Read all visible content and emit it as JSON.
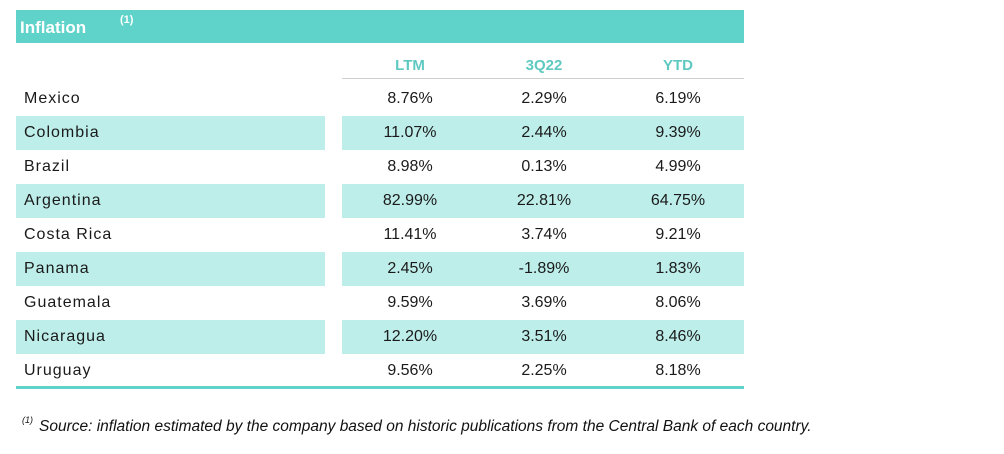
{
  "title": {
    "text": "Inflation",
    "footnote_marker": "(1)"
  },
  "columns": [
    "LTM",
    "3Q22",
    "YTD"
  ],
  "rows": [
    {
      "country": "Mexico",
      "ltm": "8.76%",
      "q": "2.29%",
      "ytd": "6.19%",
      "shaded": false
    },
    {
      "country": "Colombia",
      "ltm": "11.07%",
      "q": "2.44%",
      "ytd": "9.39%",
      "shaded": true
    },
    {
      "country": "Brazil",
      "ltm": "8.98%",
      "q": "0.13%",
      "ytd": "4.99%",
      "shaded": false
    },
    {
      "country": "Argentina",
      "ltm": "82.99%",
      "q": "22.81%",
      "ytd": "64.75%",
      "shaded": true
    },
    {
      "country": "Costa Rica",
      "ltm": "11.41%",
      "q": "3.74%",
      "ytd": "9.21%",
      "shaded": false
    },
    {
      "country": "Panama",
      "ltm": "2.45%",
      "q": "-1.89%",
      "ytd": "1.83%",
      "shaded": true
    },
    {
      "country": "Guatemala",
      "ltm": "9.59%",
      "q": "3.69%",
      "ytd": "8.06%",
      "shaded": false
    },
    {
      "country": "Nicaragua",
      "ltm": "12.20%",
      "q": "3.51%",
      "ytd": "8.46%",
      "shaded": true
    },
    {
      "country": "Uruguay",
      "ltm": "9.56%",
      "q": "2.25%",
      "ytd": "8.18%",
      "shaded": false
    }
  ],
  "footnote": {
    "marker": "(1)",
    "text": "Source: inflation estimated by the company based on historic publications from the Central Bank of each country."
  },
  "colors": {
    "accent": "#5fd3c9",
    "shade": "#bdeeea",
    "header_text": "#5ec9c1"
  }
}
